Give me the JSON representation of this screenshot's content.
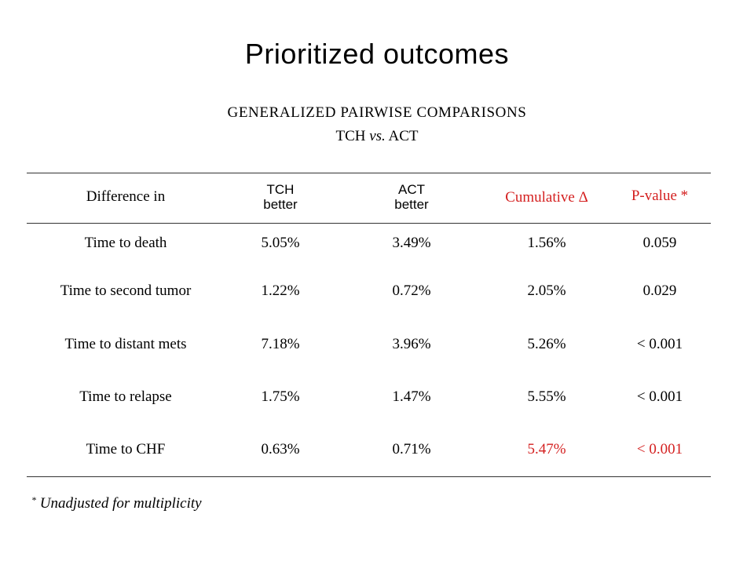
{
  "slide": {
    "title": "Prioritized outcomes",
    "subtitle_line1": "GENERALIZED PAIRWISE COMPARISONS",
    "subtitle_line2_a": "TCH ",
    "subtitle_line2_b": "vs.",
    "subtitle_line2_c": " ACT"
  },
  "table": {
    "headers": {
      "difference": "Difference in",
      "tch_line1": "TCH",
      "tch_line2": "better",
      "act_line1": "ACT",
      "act_line2": "better",
      "cumulative": "Cumulative Δ",
      "pvalue": "P-value *"
    },
    "rows": [
      {
        "outcome": "Time to death",
        "tch": "5.05%",
        "act": "3.49%",
        "cumulative": "1.56%",
        "pvalue": "0.059"
      },
      {
        "outcome": "Time to second tumor",
        "tch": "1.22%",
        "act": "0.72%",
        "cumulative": "2.05%",
        "pvalue": "0.029"
      },
      {
        "outcome": "Time to distant mets",
        "tch": "7.18%",
        "act": "3.96%",
        "cumulative": "5.26%",
        "pvalue": "< 0.001"
      },
      {
        "outcome": "Time to relapse",
        "tch": "1.75%",
        "act": "1.47%",
        "cumulative": "5.55%",
        "pvalue": "< 0.001"
      },
      {
        "outcome": "Time to CHF",
        "tch": "0.63%",
        "act": "0.71%",
        "cumulative": "5.47%",
        "pvalue": "< 0.001"
      }
    ],
    "highlight_color": "#d42020"
  },
  "footnote": {
    "marker": "*",
    "text": " Unadjusted for multiplicity"
  }
}
